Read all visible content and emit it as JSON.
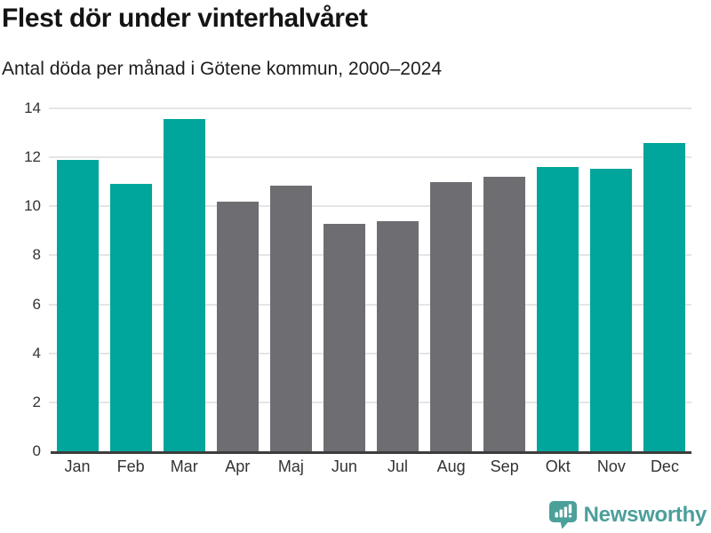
{
  "header": {
    "title": "Flest dör under vinterhalvåret",
    "subtitle": "Antal döda per månad i Götene kommun, 2000–2024"
  },
  "branding": {
    "logo_text": "Newsworthy",
    "logo_color": "#4b9f9b",
    "logo_icon": "speech-bubble-with-bar-chart-and-exclamation"
  },
  "colors": {
    "winter_bar": "#00a59b",
    "summer_bar": "#6d6d72",
    "gridline": "#e5e5e5",
    "axis_line": "#3d3d3d",
    "tick_text": "#333333",
    "title_text": "#141414"
  },
  "chart_data": {
    "type": "bar",
    "title": "Flest dör under vinterhalvåret",
    "subtitle": "Antal döda per månad i Götene kommun, 2000–2024",
    "categories": [
      "Jan",
      "Feb",
      "Mar",
      "Apr",
      "Maj",
      "Jun",
      "Jul",
      "Aug",
      "Sep",
      "Okt",
      "Nov",
      "Dec"
    ],
    "values": [
      11.9,
      10.9,
      13.55,
      10.2,
      10.85,
      9.3,
      9.4,
      11.0,
      11.2,
      11.6,
      11.55,
      12.6
    ],
    "bar_colors": [
      "#00a59b",
      "#00a59b",
      "#00a59b",
      "#6d6d72",
      "#6d6d72",
      "#6d6d72",
      "#6d6d72",
      "#6d6d72",
      "#6d6d72",
      "#00a59b",
      "#00a59b",
      "#00a59b"
    ],
    "xlabel": "",
    "ylabel": "",
    "ylim": [
      0,
      14
    ],
    "y_ticks": [
      0,
      2,
      4,
      6,
      8,
      10,
      12,
      14
    ],
    "grid": "horizontal",
    "legend": "none"
  }
}
